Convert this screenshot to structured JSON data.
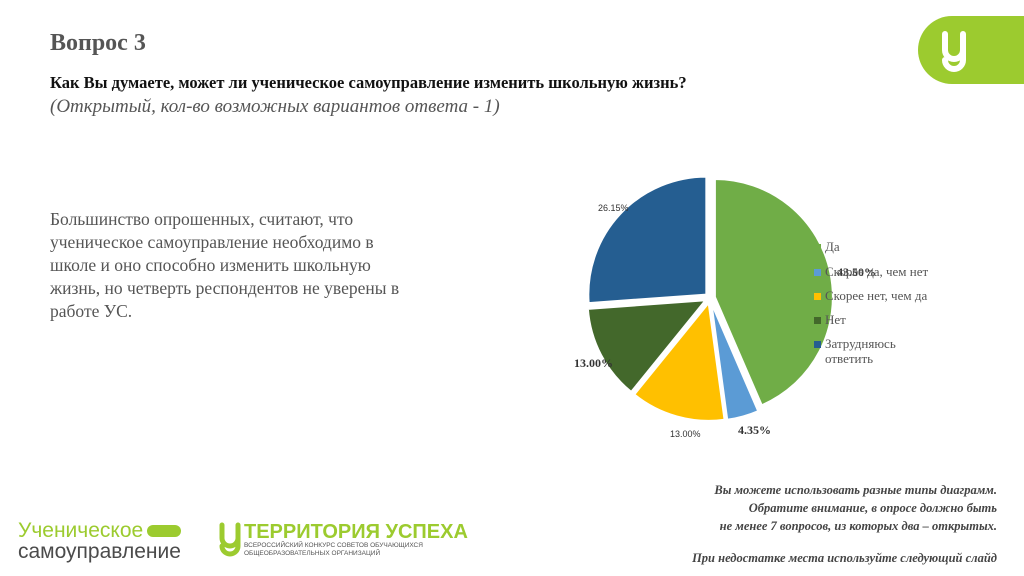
{
  "header": {
    "question_number": "Вопрос 3",
    "question": "Как Вы думаете, может ли ученическое самоуправление изменить школьную жизнь?",
    "question_note": "(Открытый, кол-во возможных вариантов ответа - 1)"
  },
  "summary": "Большинство опрошенных, считают, что ученическое самоуправление необходимо в школе и оно способно изменить школьную жизнь, но четверть респондентов не уверены в работе УС.",
  "chart_data": {
    "type": "pie",
    "title": "",
    "legend_position": "right",
    "slices": [
      {
        "label": "Да",
        "value": 43.5,
        "display": "43.50%",
        "color": "#70ad47"
      },
      {
        "label": "Скорее да, чем нет",
        "value": 4.35,
        "display": "4.35%",
        "color": "#5b9bd5"
      },
      {
        "label": "Скорее нет, чем да",
        "value": 13.0,
        "display": "13.00%",
        "color": "#ffc000"
      },
      {
        "label": "Нет",
        "value": 13.0,
        "display": "13.00%",
        "color": "#43682b"
      },
      {
        "label": "Затрудняюсь ответить",
        "value": 26.15,
        "display": "26.15%",
        "color": "#255e91"
      }
    ]
  },
  "note": {
    "line1": "Вы можете использовать разные типы диаграмм.",
    "line2": "Обратите внимание, в опросе должно быть",
    "line3": "не менее 7 вопросов, из которых два – открытых.",
    "line4": "При недостатке места используйте следующий слайд"
  },
  "branding": {
    "logo1_line1": "Ученическое",
    "logo1_line2": "самоуправление",
    "logo2_title": "ТЕРРИТОРИЯ УСПЕХА",
    "logo2_sub1": "ВСЕРОССИЙСКИЙ КОНКУРС СОВЕТОВ ОБУЧАЮЩИХСЯ",
    "logo2_sub2": "ОБЩЕОБРАЗОВАТЕЛЬНЫХ ОРГАНИЗАЦИЙ",
    "accent_color": "#9ccb2f"
  }
}
